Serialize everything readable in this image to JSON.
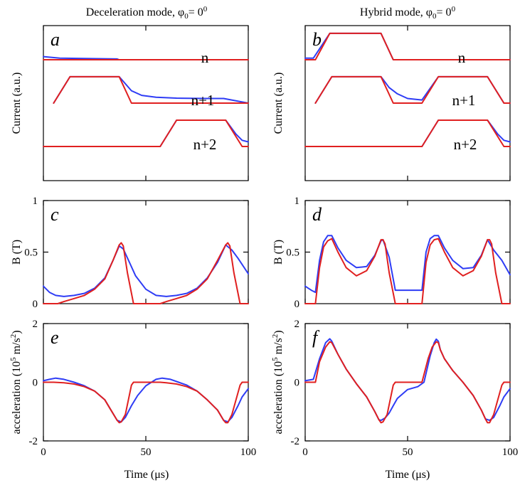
{
  "figure": {
    "columns": [
      {
        "title": "Deceleration mode, φ",
        "sub": "0",
        "eq": "= 0",
        "sup": "0"
      },
      {
        "title": "Hybrid mode, φ",
        "sub": "0",
        "eq": "= 0",
        "sup": "0"
      }
    ],
    "xlabel": "Time (μs)",
    "x_ticks": [
      "0",
      "50",
      "100"
    ]
  },
  "chart_data": [
    {
      "panel": "a",
      "type": "line",
      "ylabel": "Current (a.u.)",
      "xlim": [
        0,
        100
      ],
      "ylim": [
        0,
        1
      ],
      "channel_labels": [
        "n",
        "n+1",
        "n+2"
      ],
      "series": [
        {
          "name": "n blue",
          "color": "#2e3cf5",
          "x": [
            0,
            8,
            20,
            36,
            37,
            100
          ],
          "y": [
            0.8,
            0.79,
            0.788,
            0.785,
            0.78,
            0.78
          ]
        },
        {
          "name": "n red",
          "color": "#e02020",
          "x": [
            0,
            100
          ],
          "y": [
            0.78,
            0.78
          ]
        },
        {
          "name": "n+1 blue",
          "color": "#2e3cf5",
          "x": [
            5,
            13,
            37,
            43,
            48,
            55,
            65,
            80,
            88,
            100
          ],
          "y": [
            0.5,
            0.67,
            0.67,
            0.58,
            0.55,
            0.538,
            0.532,
            0.53,
            0.53,
            0.5
          ]
        },
        {
          "name": "n+1 red",
          "color": "#e02020",
          "x": [
            5,
            13,
            37,
            43,
            100
          ],
          "y": [
            0.5,
            0.67,
            0.67,
            0.5,
            0.5
          ]
        },
        {
          "name": "n+2 blue",
          "color": "#2e3cf5",
          "x": [
            0,
            57,
            65,
            89,
            94,
            97,
            100
          ],
          "y": [
            0.22,
            0.22,
            0.39,
            0.39,
            0.3,
            0.26,
            0.25
          ]
        },
        {
          "name": "n+2 red",
          "color": "#e02020",
          "x": [
            0,
            57,
            65,
            89,
            97,
            100
          ],
          "y": [
            0.22,
            0.22,
            0.39,
            0.39,
            0.22,
            0.22
          ]
        }
      ]
    },
    {
      "panel": "b",
      "type": "line",
      "ylabel": "Current (a.u.)",
      "xlim": [
        0,
        100
      ],
      "ylim": [
        0,
        1
      ],
      "channel_labels": [
        "n",
        "n+1",
        "n+2"
      ],
      "series": [
        {
          "name": "n blue",
          "color": "#2e3cf5",
          "x": [
            0,
            4,
            12,
            37,
            43,
            100
          ],
          "y": [
            0.79,
            0.79,
            0.95,
            0.95,
            0.78,
            0.78
          ]
        },
        {
          "name": "n red",
          "color": "#e02020",
          "x": [
            0,
            5,
            12,
            37,
            43,
            100
          ],
          "y": [
            0.78,
            0.78,
            0.95,
            0.95,
            0.78,
            0.78
          ]
        },
        {
          "name": "n+1 blue",
          "color": "#2e3cf5",
          "x": [
            5,
            13,
            37,
            41,
            45,
            50,
            57,
            65,
            89,
            97,
            100
          ],
          "y": [
            0.5,
            0.67,
            0.67,
            0.6,
            0.56,
            0.53,
            0.52,
            0.67,
            0.67,
            0.5,
            0.5
          ]
        },
        {
          "name": "n+1 red",
          "color": "#e02020",
          "x": [
            5,
            13,
            37,
            43,
            57,
            65,
            89,
            97,
            100
          ],
          "y": [
            0.5,
            0.67,
            0.67,
            0.5,
            0.5,
            0.67,
            0.67,
            0.5,
            0.5
          ]
        },
        {
          "name": "n+2 blue",
          "color": "#2e3cf5",
          "x": [
            0,
            57,
            65,
            89,
            94,
            97,
            100
          ],
          "y": [
            0.22,
            0.22,
            0.39,
            0.39,
            0.3,
            0.26,
            0.25
          ]
        },
        {
          "name": "n+2 red",
          "color": "#e02020",
          "x": [
            0,
            57,
            65,
            89,
            97,
            100
          ],
          "y": [
            0.22,
            0.22,
            0.39,
            0.39,
            0.22,
            0.22
          ]
        }
      ]
    },
    {
      "panel": "c",
      "type": "line",
      "ylabel": "B (T)",
      "xlim": [
        0,
        100
      ],
      "ylim": [
        0,
        1
      ],
      "y_ticks": [
        0,
        0.5,
        1
      ],
      "y_tick_labels": [
        "0",
        "0.5",
        "1"
      ],
      "series": [
        {
          "name": "blue",
          "color": "#2e3cf5",
          "x": [
            0,
            3,
            6,
            10,
            15,
            20,
            25,
            30,
            34,
            37,
            39,
            42,
            45,
            50,
            55,
            60,
            65,
            70,
            75,
            80,
            85,
            89,
            92,
            95,
            100
          ],
          "y": [
            0.17,
            0.11,
            0.08,
            0.07,
            0.08,
            0.1,
            0.15,
            0.25,
            0.42,
            0.56,
            0.53,
            0.4,
            0.27,
            0.14,
            0.08,
            0.07,
            0.08,
            0.1,
            0.15,
            0.25,
            0.4,
            0.57,
            0.52,
            0.44,
            0.29
          ]
        },
        {
          "name": "red",
          "color": "#e02020",
          "x": [
            0,
            7,
            10,
            15,
            20,
            25,
            30,
            34,
            37,
            38,
            39,
            41,
            44,
            57,
            60,
            65,
            70,
            75,
            80,
            85,
            89,
            90,
            91,
            93,
            96,
            100
          ],
          "y": [
            0,
            0,
            0.02,
            0.05,
            0.08,
            0.14,
            0.24,
            0.42,
            0.57,
            0.59,
            0.56,
            0.3,
            0,
            0,
            0.02,
            0.05,
            0.08,
            0.14,
            0.24,
            0.42,
            0.57,
            0.59,
            0.56,
            0.3,
            0,
            0
          ]
        }
      ]
    },
    {
      "panel": "d",
      "type": "line",
      "ylabel": "B (T)",
      "xlim": [
        0,
        100
      ],
      "ylim": [
        0,
        1
      ],
      "y_ticks": [
        0,
        0.5,
        1
      ],
      "y_tick_labels": [
        "0",
        "0.5",
        "1"
      ],
      "series": [
        {
          "name": "blue",
          "color": "#2e3cf5",
          "x": [
            0,
            3,
            5,
            7,
            9,
            11,
            13,
            16,
            20,
            25,
            30,
            34,
            37,
            38,
            41,
            44,
            57,
            59,
            61,
            63,
            65,
            68,
            72,
            77,
            82,
            86,
            89,
            92,
            96,
            100
          ],
          "y": [
            0.17,
            0.13,
            0.11,
            0.42,
            0.6,
            0.66,
            0.66,
            0.54,
            0.42,
            0.35,
            0.36,
            0.47,
            0.61,
            0.62,
            0.45,
            0.13,
            0.13,
            0.5,
            0.63,
            0.66,
            0.66,
            0.54,
            0.42,
            0.34,
            0.35,
            0.47,
            0.62,
            0.52,
            0.42,
            0.28
          ]
        },
        {
          "name": "red",
          "color": "#e02020",
          "x": [
            0,
            5,
            7,
            9,
            11,
            13,
            16,
            20,
            25,
            30,
            34,
            37,
            38,
            39,
            41,
            44,
            57,
            59,
            61,
            63,
            65,
            68,
            72,
            77,
            82,
            86,
            89,
            90,
            91,
            93,
            96,
            100
          ],
          "y": [
            0,
            0,
            0.35,
            0.55,
            0.61,
            0.63,
            0.5,
            0.35,
            0.27,
            0.32,
            0.46,
            0.62,
            0.62,
            0.58,
            0.3,
            0,
            0,
            0.4,
            0.57,
            0.62,
            0.63,
            0.5,
            0.35,
            0.27,
            0.32,
            0.46,
            0.62,
            0.62,
            0.58,
            0.3,
            0,
            0
          ]
        }
      ]
    },
    {
      "panel": "e",
      "type": "line",
      "ylabel": "acceleration (10",
      "ylabel_sup": "5",
      "ylabel_end": " m/s",
      "ylabel_sup2": "2",
      "ylabel_close": ")",
      "xlim": [
        0,
        100
      ],
      "ylim": [
        -2,
        2
      ],
      "y_ticks": [
        -2,
        0,
        2
      ],
      "y_tick_labels": [
        "-2",
        "0",
        "2"
      ],
      "series": [
        {
          "name": "blue",
          "color": "#2e3cf5",
          "x": [
            0,
            3,
            6,
            10,
            15,
            20,
            25,
            30,
            33,
            36,
            38,
            40,
            43,
            46,
            50,
            55,
            58,
            62,
            66,
            70,
            75,
            80,
            85,
            88,
            90,
            92,
            95,
            97,
            100
          ],
          "y": [
            0.05,
            0.1,
            0.14,
            0.1,
            0,
            -0.12,
            -0.3,
            -0.6,
            -0.95,
            -1.3,
            -1.35,
            -1.2,
            -0.8,
            -0.45,
            -0.12,
            0.1,
            0.14,
            0.1,
            0,
            -0.1,
            -0.3,
            -0.6,
            -0.95,
            -1.3,
            -1.35,
            -1.2,
            -0.8,
            -0.5,
            -0.22
          ]
        },
        {
          "name": "red",
          "color": "#e02020",
          "x": [
            0,
            5,
            10,
            15,
            20,
            25,
            30,
            33,
            36,
            37,
            38,
            40,
            43,
            44,
            57,
            60,
            65,
            70,
            75,
            80,
            85,
            88,
            89,
            90,
            92,
            96,
            97,
            100
          ],
          "y": [
            0,
            0,
            -0.02,
            -0.06,
            -0.15,
            -0.3,
            -0.6,
            -0.95,
            -1.3,
            -1.38,
            -1.35,
            -1.1,
            -0.1,
            0,
            0,
            -0.02,
            -0.06,
            -0.15,
            -0.3,
            -0.6,
            -0.95,
            -1.3,
            -1.38,
            -1.38,
            -1.1,
            -0.1,
            0,
            0
          ]
        }
      ]
    },
    {
      "panel": "f",
      "type": "line",
      "ylabel": "acceleration (10",
      "ylabel_sup": "5",
      "ylabel_end": " m/s",
      "ylabel_sup2": "2",
      "ylabel_close": ")",
      "xlim": [
        0,
        100
      ],
      "ylim": [
        -2,
        2
      ],
      "y_ticks": [
        -2,
        0,
        2
      ],
      "y_tick_labels": [
        "-2",
        "0",
        "2"
      ],
      "series": [
        {
          "name": "blue",
          "color": "#2e3cf5",
          "x": [
            0,
            4,
            7,
            10,
            12,
            13,
            16,
            20,
            25,
            30,
            34,
            36,
            37,
            39,
            41,
            43,
            45,
            50,
            55,
            58,
            61,
            63,
            64,
            65,
            66,
            68,
            72,
            77,
            82,
            86,
            88,
            90,
            92,
            95,
            97,
            100
          ],
          "y": [
            0.05,
            0.1,
            0.8,
            1.35,
            1.48,
            1.4,
            0.95,
            0.45,
            -0.05,
            -0.5,
            -1.0,
            -1.28,
            -1.3,
            -1.22,
            -1.05,
            -0.8,
            -0.55,
            -0.25,
            -0.15,
            0,
            0.9,
            1.35,
            1.47,
            1.4,
            1.1,
            0.8,
            0.4,
            0,
            -0.45,
            -0.95,
            -1.25,
            -1.3,
            -1.2,
            -0.8,
            -0.5,
            -0.22
          ]
        },
        {
          "name": "red",
          "color": "#e02020",
          "x": [
            0,
            5,
            7,
            10,
            12,
            13,
            16,
            20,
            25,
            30,
            34,
            36,
            37,
            38,
            40,
            43,
            44,
            57,
            60,
            62,
            64,
            65,
            66,
            68,
            72,
            77,
            82,
            86,
            88,
            89,
            90,
            92,
            96,
            97,
            100
          ],
          "y": [
            0,
            0,
            0.7,
            1.2,
            1.38,
            1.35,
            0.95,
            0.45,
            -0.05,
            -0.5,
            -1.0,
            -1.28,
            -1.38,
            -1.35,
            -1.1,
            -0.1,
            0,
            0,
            0.8,
            1.2,
            1.38,
            1.35,
            1.1,
            0.8,
            0.4,
            0,
            -0.45,
            -0.95,
            -1.25,
            -1.38,
            -1.38,
            -1.1,
            -0.1,
            0,
            0
          ]
        }
      ]
    }
  ]
}
